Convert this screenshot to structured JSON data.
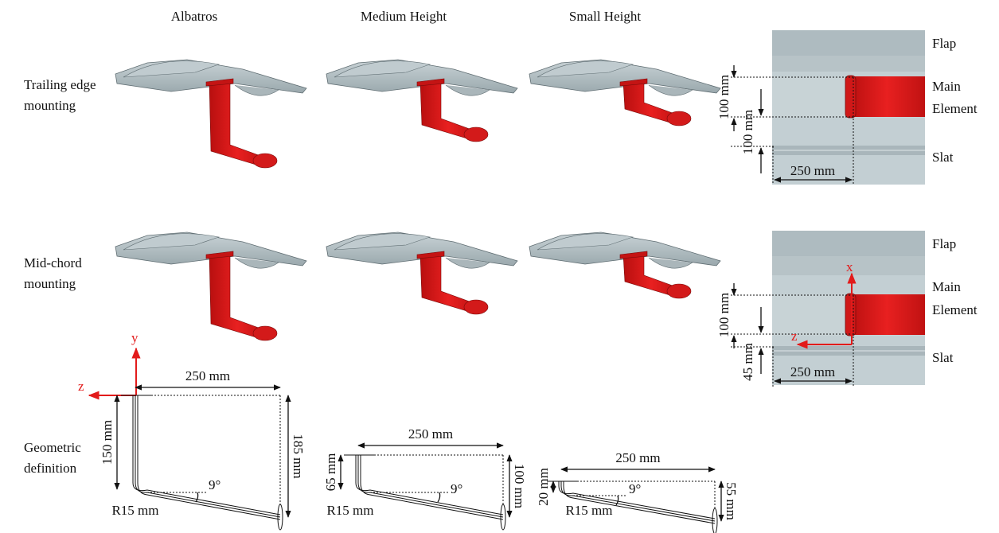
{
  "column_headers": [
    "Albatros",
    "Medium Height",
    "Small Height"
  ],
  "row_labels": [
    [
      "Trailing edge",
      "mounting"
    ],
    [
      "Mid-chord",
      "mounting"
    ],
    [
      "Geometric",
      "definition"
    ]
  ],
  "top_views": [
    {
      "flap": "Flap",
      "main_element": [
        "Main",
        "Element"
      ],
      "slat": "Slat",
      "dim_main": "100 mm",
      "dim_gap": "100 mm",
      "dim_span": "250 mm"
    },
    {
      "flap": "Flap",
      "main_element": [
        "Main",
        "Element"
      ],
      "slat": "Slat",
      "dim_main": "100 mm",
      "dim_gap": "45 mm",
      "dim_span": "250 mm",
      "axis_x": "x",
      "axis_z": "z"
    }
  ],
  "geometric_definition": {
    "axis_y": "y",
    "axis_z": "z",
    "profiles": [
      {
        "length": "250 mm",
        "height": "150 mm",
        "total_height": "185 mm",
        "angle": "9°",
        "radius": "R15 mm"
      },
      {
        "length": "250 mm",
        "height": "65 mm",
        "total_height": "100 mm",
        "angle": "9°",
        "radius": "R15 mm"
      },
      {
        "length": "250 mm",
        "height": "20 mm",
        "total_height": "55 mm",
        "angle": "9°",
        "radius": "R15 mm"
      }
    ]
  }
}
